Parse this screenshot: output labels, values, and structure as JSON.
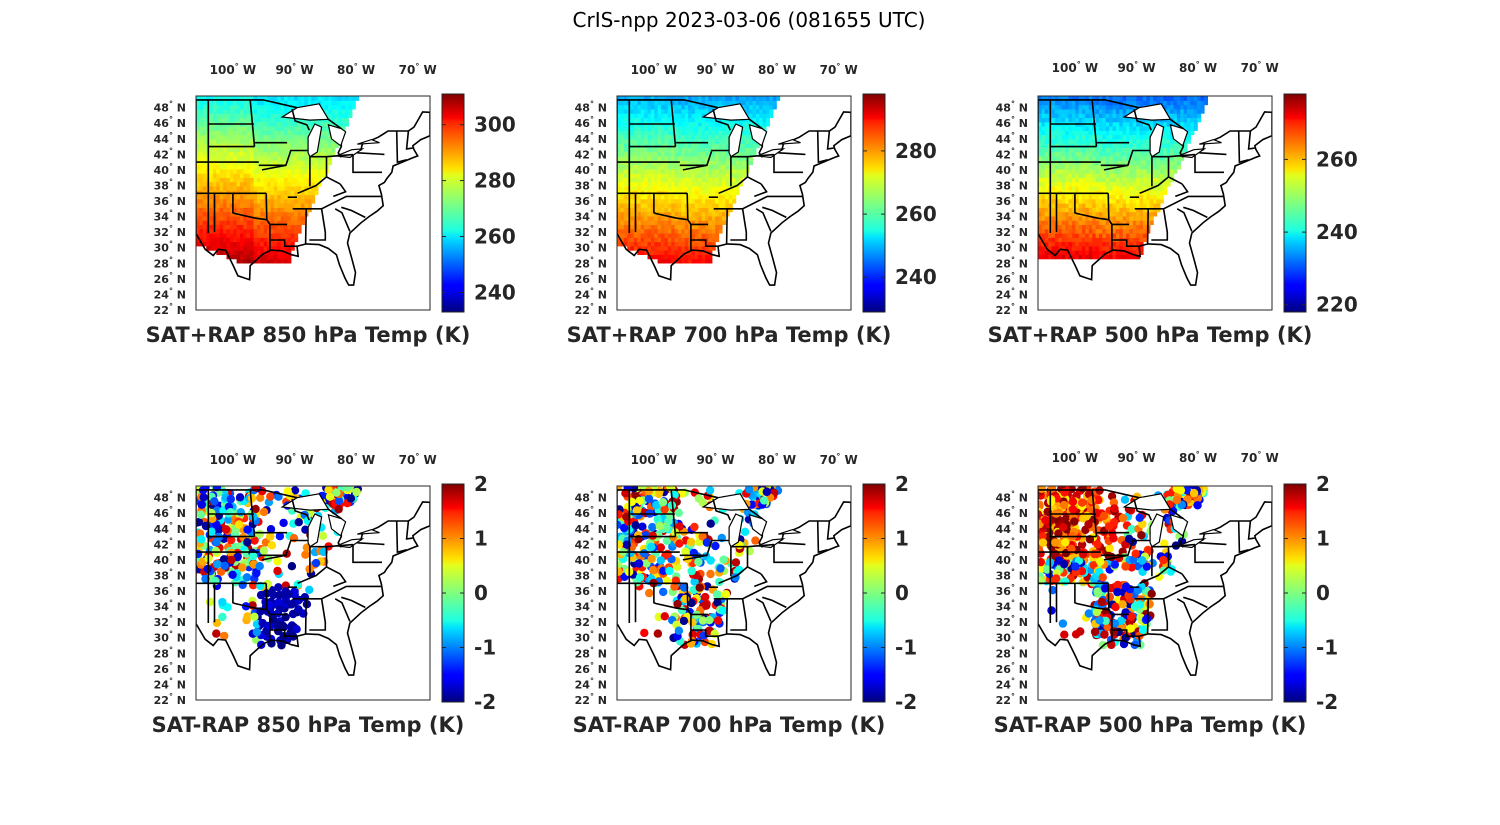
{
  "title": "CrIS-npp 2023-03-06 (081655 UTC)",
  "lon_labels": [
    "100",
    "90",
    "80",
    "70"
  ],
  "lon_suffix": "W",
  "lat_labels": [
    "48",
    "46",
    "44",
    "42",
    "40",
    "38",
    "36",
    "34",
    "32",
    "30",
    "28",
    "26",
    "24",
    "22"
  ],
  "lat_suffix": "N",
  "map_extent": {
    "lon": [
      -106,
      -68
    ],
    "lat": [
      22,
      49.5
    ]
  },
  "panels": [
    {
      "title": "SAT+RAP 850 hPa Temp (K)",
      "kind": "field",
      "level_hpa": 850,
      "cbar_range": [
        233,
        311
      ],
      "cbar_ticks": [
        "240",
        "260",
        "280",
        "300"
      ]
    },
    {
      "title": "SAT+RAP 700 hPa Temp (K)",
      "kind": "field",
      "level_hpa": 700,
      "cbar_range": [
        229,
        298
      ],
      "cbar_ticks": [
        "240",
        "260",
        "280"
      ]
    },
    {
      "title": "SAT+RAP 500 hPa Temp (K)",
      "kind": "field",
      "level_hpa": 500,
      "cbar_range": [
        218,
        278
      ],
      "cbar_ticks": [
        "220",
        "240",
        "260"
      ]
    },
    {
      "title": "SAT-RAP 850 hPa Temp (K)",
      "kind": "difference",
      "level_hpa": 850,
      "cbar_range": [
        -2,
        2
      ],
      "cbar_ticks": [
        "-2",
        "-1",
        "0",
        "1",
        "2"
      ]
    },
    {
      "title": "SAT-RAP 700 hPa Temp (K)",
      "kind": "difference",
      "level_hpa": 700,
      "cbar_range": [
        -2,
        2
      ],
      "cbar_ticks": [
        "-2",
        "-1",
        "0",
        "1",
        "2"
      ]
    },
    {
      "title": "SAT-RAP 500 hPa Temp (K)",
      "kind": "difference",
      "level_hpa": 500,
      "cbar_range": [
        -2,
        2
      ],
      "cbar_ticks": [
        "-2",
        "-1",
        "0",
        "1",
        "2"
      ]
    }
  ],
  "colormap": "jet"
}
